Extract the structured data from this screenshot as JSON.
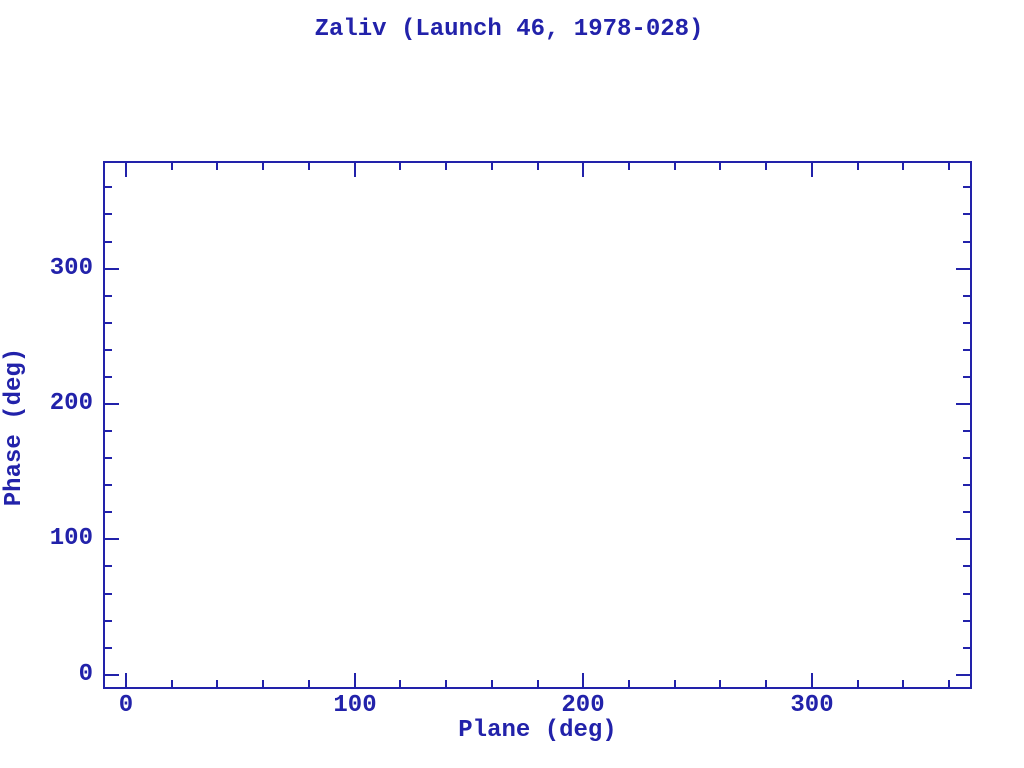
{
  "page": {
    "background": "#ffffff",
    "accent_color": "#2222aa"
  },
  "chart_data": {
    "type": "scatter",
    "title": "Zaliv (Launch 46, 1978-028)",
    "xlabel": "Plane (deg)",
    "ylabel": "Phase (deg)",
    "xlim": [
      -10,
      370
    ],
    "ylim": [
      -10.5,
      379.5
    ],
    "xticks_major": [
      0,
      100,
      200,
      300
    ],
    "xtick_labels": [
      "0",
      "100",
      "200",
      "300"
    ],
    "yticks_major": [
      0,
      100,
      200,
      300
    ],
    "ytick_labels": [
      "0",
      "100",
      "200",
      "300"
    ],
    "minor_tick_interval": 20,
    "tick_direction": "inward",
    "frame_sides_ticked": [
      "top",
      "bottom",
      "left",
      "right"
    ],
    "grid": false,
    "legend": null,
    "series": [],
    "points": [],
    "frame_color": "#2222aa",
    "text_color": "#2222aa"
  }
}
